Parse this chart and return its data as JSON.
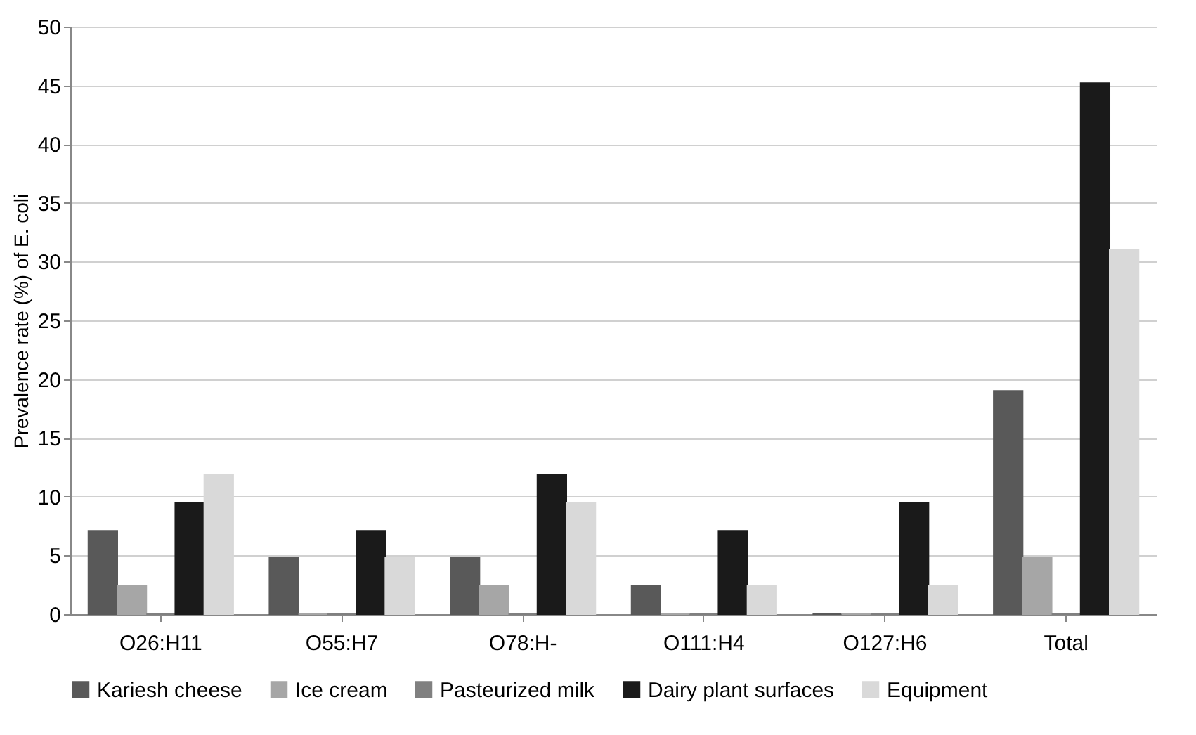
{
  "chart_data": {
    "type": "bar",
    "ylabel": "Prevalence rate (%) of E. coli",
    "categories": [
      "O26:H11",
      "O55:H7",
      "O78:H-",
      "O111:H4",
      "O127:H6",
      "Total"
    ],
    "series": [
      {
        "name": "Kariesh cheese",
        "color": "#595959",
        "values": [
          7.1,
          4.8,
          4.8,
          2.4,
          0,
          19
        ]
      },
      {
        "name": "Ice cream",
        "color": "#a6a6a6",
        "values": [
          2.4,
          0,
          2.4,
          0,
          0,
          4.8
        ]
      },
      {
        "name": "Pasteurized milk",
        "color": "#808080",
        "values": [
          0,
          0,
          0,
          0,
          0,
          0
        ]
      },
      {
        "name": "Dairy plant surfaces",
        "color": "#1a1a1a",
        "values": [
          9.5,
          7.1,
          11.9,
          7.1,
          9.5,
          45.2
        ]
      },
      {
        "name": "Equipment",
        "color": "#d9d9d9",
        "values": [
          11.9,
          4.8,
          9.5,
          2.4,
          2.4,
          31
        ]
      }
    ],
    "ylim": [
      0,
      50
    ],
    "yticks": [
      0,
      5,
      10,
      15,
      20,
      25,
      30,
      35,
      40,
      45,
      50
    ],
    "grid": "y",
    "legend": "bottom"
  }
}
